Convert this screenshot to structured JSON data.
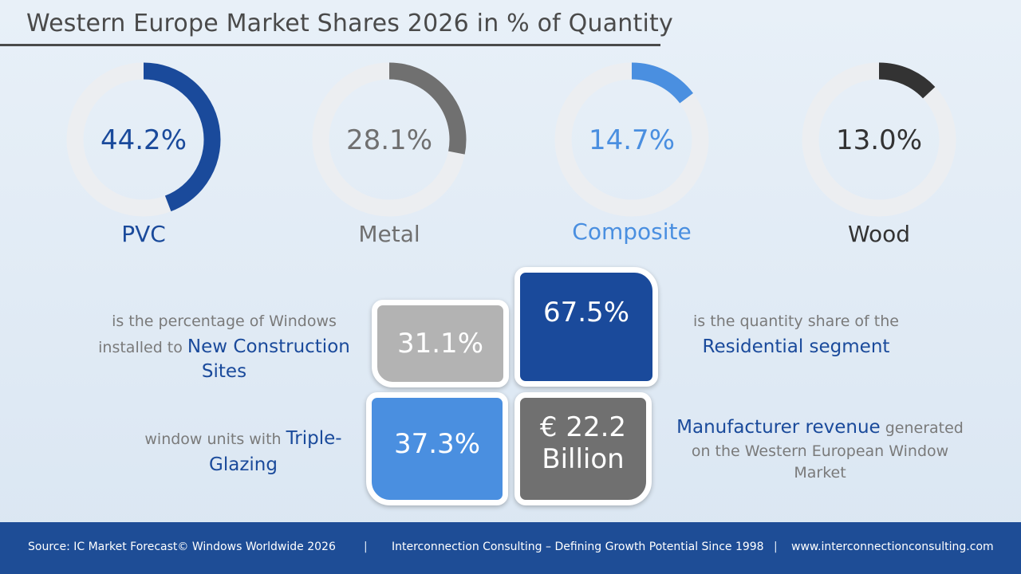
{
  "title": "Western Europe Market Shares 2026 in % of Quantity",
  "chart_data": {
    "type": "pie",
    "title": "Western Europe Market Shares 2026 in % of Quantity",
    "series": [
      {
        "name": "PVC",
        "value": 44.2,
        "label": "44.2%",
        "color": "#1a4a9b"
      },
      {
        "name": "Metal",
        "value": 28.1,
        "label": "28.1%",
        "color": "#707070"
      },
      {
        "name": "Composite",
        "value": 14.7,
        "label": "14.7%",
        "color": "#4a8fe0"
      },
      {
        "name": "Wood",
        "value": 13.0,
        "label": "13.0%",
        "color": "#333333"
      }
    ],
    "track_color": "#eceef1"
  },
  "tiles": {
    "new_construction": {
      "value": "31.1%",
      "color": "#b3b3b3"
    },
    "residential": {
      "value": "67.5%",
      "color": "#1a4a9b"
    },
    "triple_glazing": {
      "value": "37.3%",
      "color": "#4a8fe0"
    },
    "revenue": {
      "value_line1": "€ 22.2",
      "value_line2": "Billion",
      "color": "#707070"
    }
  },
  "descriptions": {
    "new_construction": {
      "line1": "is the percentage of Windows",
      "line2_plain": "installed to ",
      "line2_highlight": "New Construction",
      "line3_highlight": "Sites"
    },
    "residential": {
      "line1": "is the quantity share of the",
      "line2_highlight": "Residential segment"
    },
    "triple_glazing": {
      "line1_plain": "window units with ",
      "line1_highlight": "Triple-",
      "line2_highlight": "Glazing"
    },
    "revenue": {
      "line1_highlight": "Manufacturer revenue",
      "line1_plain": " generated",
      "line2": "on the Western European Window",
      "line3": "Market"
    }
  },
  "footer": {
    "source": "Source: IC Market Forecast© Windows Worldwide 2026",
    "separator": "|",
    "tagline": "Interconnection Consulting – Defining Growth Potential Since 1998",
    "url": "www.interconnectionconsulting.com"
  }
}
